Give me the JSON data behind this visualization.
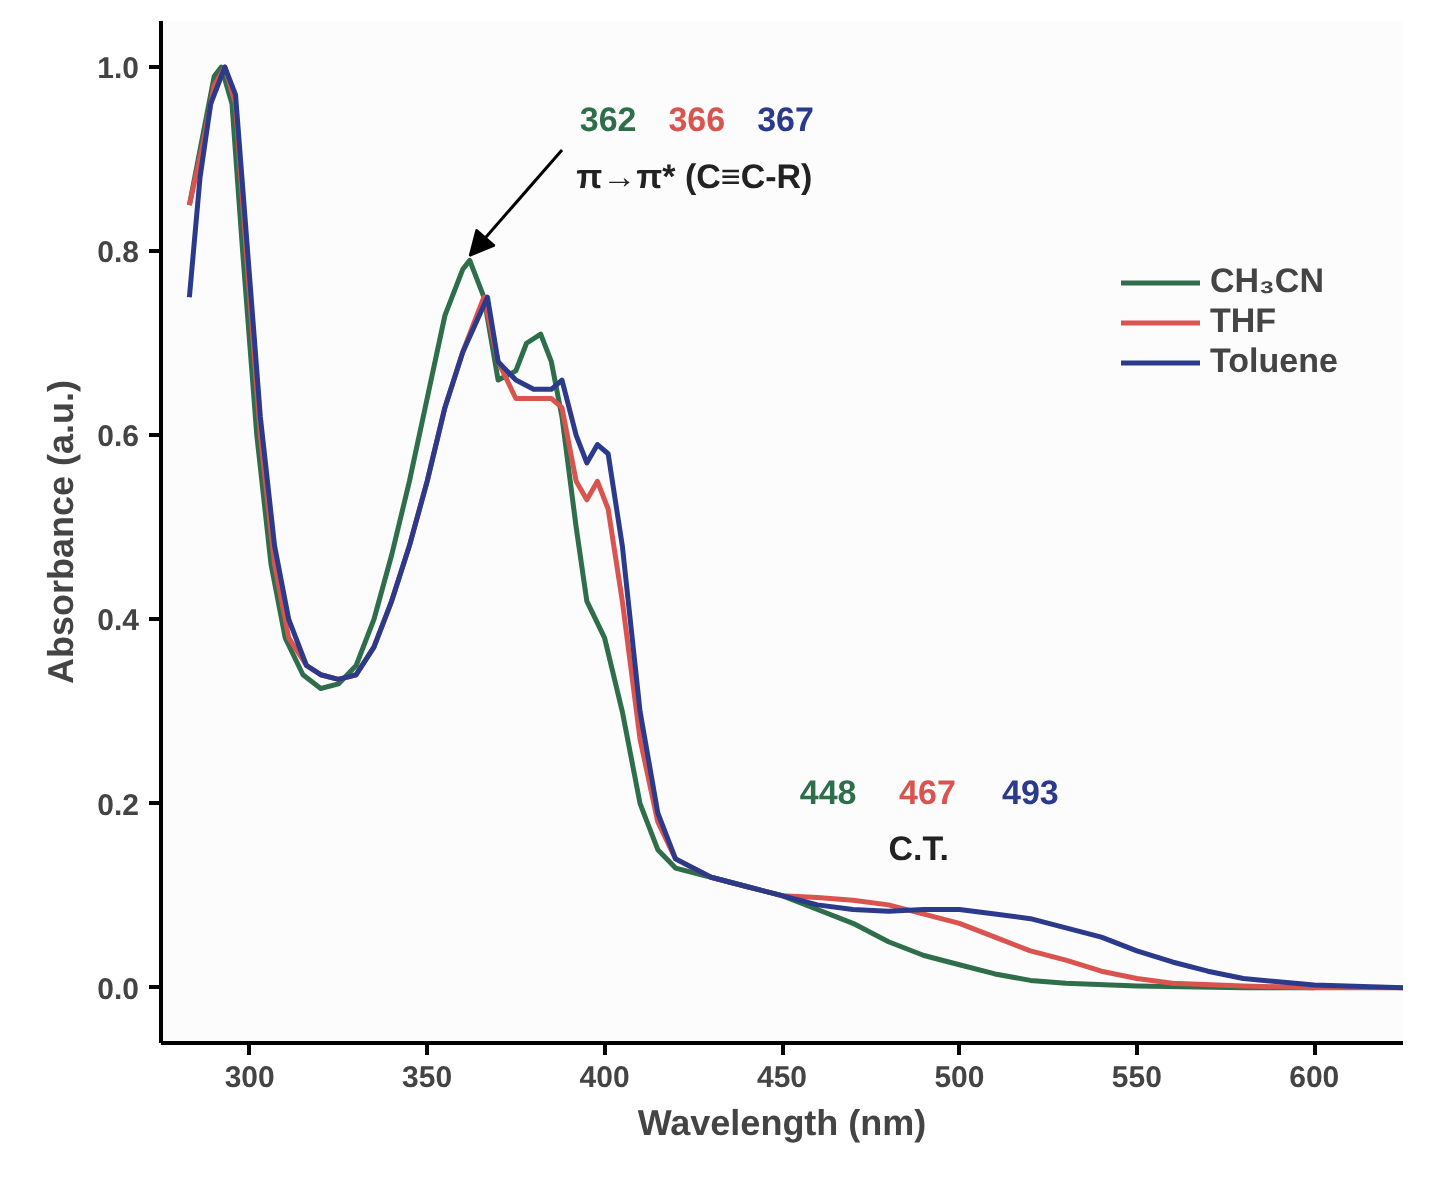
{
  "chart_data": {
    "type": "line",
    "xlabel": "Wavelength (nm)",
    "ylabel": "Absorbance (a.u.)",
    "xlim": [
      275,
      625
    ],
    "ylim": [
      -0.06,
      1.05
    ],
    "xticks": [
      300,
      350,
      400,
      450,
      500,
      550,
      600
    ],
    "yticks": [
      {
        "value": 0,
        "label": "0.0"
      },
      0.2,
      0.4,
      0.6,
      0.8,
      {
        "value": 1,
        "label": "1.0"
      }
    ],
    "grid": false,
    "legend": "top right",
    "line_style": "solid",
    "marker": "none",
    "series": [
      {
        "name": "CH₃CN",
        "color": "#2e6e4a",
        "x": [
          283,
          287,
          290,
          292,
          295,
          298,
          302,
          306,
          310,
          315,
          320,
          325,
          330,
          335,
          340,
          345,
          350,
          355,
          360,
          362,
          366,
          370,
          375,
          378,
          382,
          385,
          388,
          392,
          395,
          400,
          405,
          410,
          415,
          420,
          430,
          440,
          450,
          460,
          470,
          480,
          490,
          500,
          510,
          520,
          530,
          550,
          580,
          600
        ],
        "values": [
          0.85,
          0.93,
          0.99,
          1.0,
          0.96,
          0.8,
          0.6,
          0.46,
          0.38,
          0.34,
          0.325,
          0.33,
          0.35,
          0.4,
          0.47,
          0.55,
          0.64,
          0.73,
          0.78,
          0.79,
          0.75,
          0.66,
          0.67,
          0.7,
          0.71,
          0.68,
          0.62,
          0.5,
          0.42,
          0.38,
          0.3,
          0.2,
          0.15,
          0.13,
          0.12,
          0.11,
          0.1,
          0.085,
          0.07,
          0.05,
          0.035,
          0.025,
          0.015,
          0.008,
          0.005,
          0.002,
          0.0,
          0.0
        ]
      },
      {
        "name": "THF",
        "color": "#d9534f",
        "x": [
          283,
          287,
          290,
          293,
          296,
          299,
          303,
          307,
          311,
          316,
          320,
          325,
          330,
          335,
          340,
          345,
          350,
          355,
          360,
          366,
          370,
          375,
          380,
          385,
          388,
          392,
          395,
          398,
          401,
          405,
          410,
          415,
          420,
          430,
          440,
          450,
          460,
          470,
          480,
          490,
          500,
          510,
          520,
          530,
          540,
          550,
          560,
          580,
          600,
          625
        ],
        "values": [
          0.85,
          0.92,
          0.98,
          1.0,
          0.96,
          0.8,
          0.6,
          0.46,
          0.38,
          0.35,
          0.34,
          0.335,
          0.34,
          0.37,
          0.42,
          0.48,
          0.55,
          0.63,
          0.69,
          0.75,
          0.68,
          0.64,
          0.64,
          0.64,
          0.63,
          0.55,
          0.53,
          0.55,
          0.52,
          0.42,
          0.27,
          0.18,
          0.14,
          0.12,
          0.11,
          0.1,
          0.098,
          0.095,
          0.09,
          0.08,
          0.07,
          0.055,
          0.04,
          0.03,
          0.018,
          0.01,
          0.005,
          0.002,
          0.0,
          0.0
        ]
      },
      {
        "name": "Toluene",
        "color": "#2b3a8a",
        "x": [
          283,
          286,
          289,
          293,
          296,
          299,
          303,
          307,
          311,
          316,
          320,
          325,
          330,
          335,
          340,
          345,
          350,
          355,
          360,
          367,
          370,
          375,
          380,
          385,
          388,
          392,
          395,
          398,
          401,
          405,
          410,
          415,
          420,
          430,
          440,
          450,
          460,
          470,
          480,
          490,
          500,
          510,
          520,
          530,
          540,
          550,
          560,
          570,
          580,
          600,
          625
        ],
        "values": [
          0.75,
          0.88,
          0.96,
          1.0,
          0.97,
          0.82,
          0.62,
          0.48,
          0.4,
          0.35,
          0.34,
          0.335,
          0.34,
          0.37,
          0.42,
          0.48,
          0.55,
          0.63,
          0.69,
          0.75,
          0.68,
          0.66,
          0.65,
          0.65,
          0.66,
          0.6,
          0.57,
          0.59,
          0.58,
          0.48,
          0.3,
          0.19,
          0.14,
          0.12,
          0.11,
          0.1,
          0.09,
          0.085,
          0.083,
          0.085,
          0.085,
          0.08,
          0.075,
          0.065,
          0.055,
          0.04,
          0.028,
          0.018,
          0.01,
          0.003,
          0.0
        ]
      }
    ],
    "annotations": [
      "362",
      "366",
      "367",
      {
        "text": "π→π* (C≡C-R)",
        "x": 362,
        "y": 0.79
      },
      "448",
      "467",
      "493",
      "C.T."
    ]
  }
}
